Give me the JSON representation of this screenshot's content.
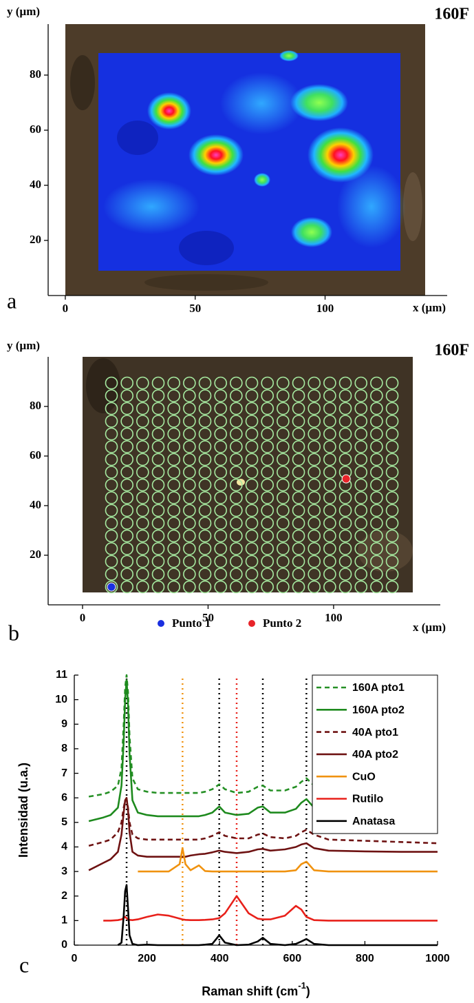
{
  "chart_data": [
    {
      "type": "map",
      "panel_label": "a",
      "corner_label": "160F",
      "xlabel": "x (µm)",
      "ylabel": "y (µm)",
      "xlim": [
        -6.6,
        147
      ],
      "ylim": [
        0,
        98.5
      ],
      "xticks": [
        0,
        50,
        100
      ],
      "yticks": [
        20,
        40,
        60,
        80
      ]
    },
    {
      "type": "map",
      "panel_label": "b",
      "corner_label": "160F",
      "xlabel": "x (µm)",
      "ylabel": "y (µm)",
      "xlim": [
        -13.7,
        142.5
      ],
      "ylim": [
        0,
        100
      ],
      "xticks": [
        0,
        50,
        100
      ],
      "yticks": [
        20,
        40,
        60,
        80
      ],
      "series": [
        {
          "name": "Punto 1",
          "color": "#1a2fe0",
          "x": [
            11.5
          ],
          "y": [
            7.2
          ]
        },
        {
          "name": "Punto 2",
          "color": "#e8242a",
          "x": [
            105
          ],
          "y": [
            50.8
          ]
        }
      ]
    },
    {
      "type": "line",
      "panel_label": "c",
      "xlabel": "Raman shift (cm",
      "xlabel_sup": "-1",
      "xlabel_end": ")",
      "ylabel": "Intensidad (u.a.)",
      "xlim": [
        0,
        1000
      ],
      "ylim": [
        0,
        11
      ],
      "xticks": [
        0,
        200,
        400,
        600,
        800,
        1000
      ],
      "yticks": [
        0,
        1,
        2,
        3,
        4,
        5,
        6,
        7,
        8,
        9,
        10,
        11
      ],
      "legend": "upper right",
      "x": [
        40,
        80,
        100,
        120,
        130,
        136,
        140,
        144,
        148,
        152,
        160,
        175,
        200,
        230,
        260,
        290,
        298,
        306,
        320,
        343,
        360,
        380,
        399,
        415,
        447,
        480,
        505,
        519,
        540,
        580,
        610,
        625,
        639,
        660,
        700,
        800,
        900,
        1000
      ],
      "series": [
        {
          "name": "160A pto1",
          "color": "#259025",
          "dash": true,
          "values": [
            6.05,
            6.15,
            6.25,
            6.5,
            7.2,
            9,
            10.5,
            11,
            10.3,
            8.5,
            6.8,
            6.35,
            6.25,
            6.2,
            6.2,
            6.2,
            6.2,
            6.2,
            6.2,
            6.2,
            6.25,
            6.35,
            6.55,
            6.35,
            6.2,
            6.25,
            6.45,
            6.5,
            6.3,
            6.3,
            6.45,
            6.65,
            6.8,
            6.5,
            6.25,
            6.2,
            6.15,
            6.15
          ]
        },
        {
          "name": "160A pto2",
          "color": "#1e8a1e",
          "dash": false,
          "values": [
            5.05,
            5.2,
            5.3,
            5.6,
            6.5,
            8.3,
            10,
            10.8,
            9.8,
            7.8,
            5.9,
            5.4,
            5.3,
            5.25,
            5.25,
            5.25,
            5.25,
            5.25,
            5.25,
            5.25,
            5.3,
            5.4,
            5.65,
            5.4,
            5.3,
            5.35,
            5.6,
            5.65,
            5.4,
            5.4,
            5.55,
            5.8,
            5.95,
            5.6,
            5.35,
            5.25,
            5.2,
            5.18
          ]
        },
        {
          "name": "40A pto1",
          "color": "#6e1212",
          "dash": true,
          "values": [
            4.05,
            4.2,
            4.3,
            4.6,
            5.0,
            5.6,
            5.9,
            5.95,
            5.6,
            5.0,
            4.5,
            4.35,
            4.3,
            4.3,
            4.3,
            4.3,
            4.3,
            4.3,
            4.3,
            4.3,
            4.35,
            4.45,
            4.6,
            4.45,
            4.35,
            4.35,
            4.5,
            4.55,
            4.4,
            4.35,
            4.45,
            4.6,
            4.7,
            4.5,
            4.3,
            4.25,
            4.2,
            4.15
          ]
        },
        {
          "name": "40A pto2",
          "color": "#6e1212",
          "dash": false,
          "values": [
            3.05,
            3.35,
            3.5,
            3.8,
            4.5,
            5.4,
            5.9,
            6.0,
            5.5,
            4.6,
            3.8,
            3.65,
            3.6,
            3.6,
            3.6,
            3.6,
            3.6,
            3.6,
            3.65,
            3.7,
            3.72,
            3.78,
            3.85,
            3.8,
            3.75,
            3.8,
            3.9,
            3.92,
            3.85,
            3.9,
            4.0,
            4.1,
            4.15,
            3.95,
            3.85,
            3.82,
            3.8,
            3.8
          ]
        },
        {
          "name": "CuO",
          "color": "#f0920f",
          "dash": false,
          "values": [
            null,
            null,
            null,
            null,
            null,
            null,
            null,
            null,
            null,
            null,
            null,
            3.0,
            3.0,
            3.0,
            3.0,
            3.3,
            3.95,
            3.3,
            3.05,
            3.25,
            3.02,
            3.0,
            3.0,
            3.0,
            3.0,
            3.0,
            3.0,
            3.0,
            3.0,
            3.0,
            3.05,
            3.3,
            3.4,
            3.05,
            3.0,
            3.0,
            3.0,
            3.0
          ]
        },
        {
          "name": "Rutilo",
          "color": "#e8201a",
          "dash": false,
          "values": [
            null,
            1.0,
            1.0,
            1.02,
            1.05,
            1.1,
            1.15,
            1.1,
            1.05,
            1.03,
            1.02,
            1.05,
            1.15,
            1.25,
            1.2,
            1.08,
            1.05,
            1.03,
            1.02,
            1.02,
            1.03,
            1.05,
            1.1,
            1.3,
            2.0,
            1.3,
            1.08,
            1.05,
            1.05,
            1.2,
            1.6,
            1.45,
            1.15,
            1.02,
            1.0,
            1.0,
            1.0,
            1.0
          ]
        },
        {
          "name": "Anatasa",
          "color": "#000000",
          "dash": false,
          "values": [
            null,
            null,
            null,
            0.0,
            0.1,
            1.2,
            2.2,
            2.45,
            1.5,
            0.4,
            0.05,
            0.0,
            0.02,
            0.0,
            0.0,
            0.0,
            0.0,
            0.0,
            0.0,
            0.0,
            0.02,
            0.05,
            0.4,
            0.1,
            0.0,
            0.02,
            0.15,
            0.3,
            0.05,
            0.0,
            0.05,
            0.15,
            0.25,
            0.05,
            0.0,
            0.0,
            0.0,
            0.0
          ]
        }
      ],
      "vlines": [
        {
          "x": 144,
          "color": "#000000"
        },
        {
          "x": 298,
          "color": "#f0920f"
        },
        {
          "x": 399,
          "color": "#000000"
        },
        {
          "x": 447,
          "color": "#e8201a"
        },
        {
          "x": 519,
          "color": "#000000"
        },
        {
          "x": 639,
          "color": "#000000"
        }
      ]
    }
  ]
}
